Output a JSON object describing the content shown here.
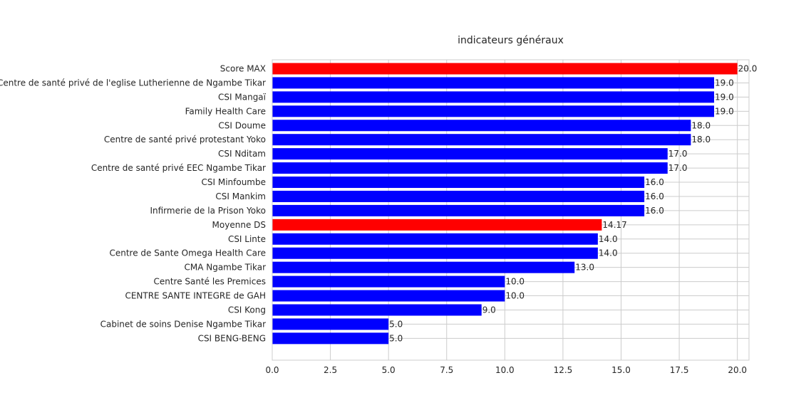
{
  "chart_data": {
    "type": "bar",
    "orientation": "horizontal",
    "title": "indicateurs généraux",
    "xlabel": "",
    "ylabel": "",
    "xlim": [
      0,
      20.5
    ],
    "xticks": [
      "0.0",
      "2.5",
      "5.0",
      "7.5",
      "10.0",
      "12.5",
      "15.0",
      "17.5",
      "20.0"
    ],
    "grid": true,
    "categories": [
      "Score MAX",
      "Centre de santé privé  de l'eglise Lutherienne de Ngambe Tikar",
      "CSI Mangaï",
      "Family Health Care",
      "CSI Doume",
      "Centre de santé privé protestant Yoko",
      "CSI Nditam",
      "Centre de santé privé EEC Ngambe Tikar",
      "CSI Minfoumbe",
      "CSI Mankim",
      "Infirmerie de la Prison Yoko",
      "Moyenne DS",
      "CSI Linte",
      "Centre de Sante Omega Health  Care",
      "CMA Ngambe Tikar",
      "Centre Santé les Premices",
      "CENTRE SANTE INTEGRE  de GAH",
      "CSI Kong",
      "Cabinet de soins Denise Ngambe Tikar",
      "CSI BENG-BENG"
    ],
    "values": [
      20.0,
      19.0,
      19.0,
      19.0,
      18.0,
      18.0,
      17.0,
      17.0,
      16.0,
      16.0,
      16.0,
      14.17,
      14.0,
      14.0,
      13.0,
      10.0,
      10.0,
      9.0,
      5.0,
      5.0
    ],
    "value_labels": [
      "20.0",
      "19.0",
      "19.0",
      "19.0",
      "18.0",
      "18.0",
      "17.0",
      "17.0",
      "16.0",
      "16.0",
      "16.0",
      "14.17",
      "14.0",
      "14.0",
      "13.0",
      "10.0",
      "10.0",
      "9.0",
      "5.0",
      "5.0"
    ],
    "bar_colors": [
      "#ff0000",
      "#0000ff",
      "#0000ff",
      "#0000ff",
      "#0000ff",
      "#0000ff",
      "#0000ff",
      "#0000ff",
      "#0000ff",
      "#0000ff",
      "#0000ff",
      "#ff0000",
      "#0000ff",
      "#0000ff",
      "#0000ff",
      "#0000ff",
      "#0000ff",
      "#0000ff",
      "#0000ff",
      "#0000ff"
    ],
    "colors": {
      "highlight": "#ff0000",
      "default": "#0000ff",
      "grid": "#cccccc"
    }
  }
}
